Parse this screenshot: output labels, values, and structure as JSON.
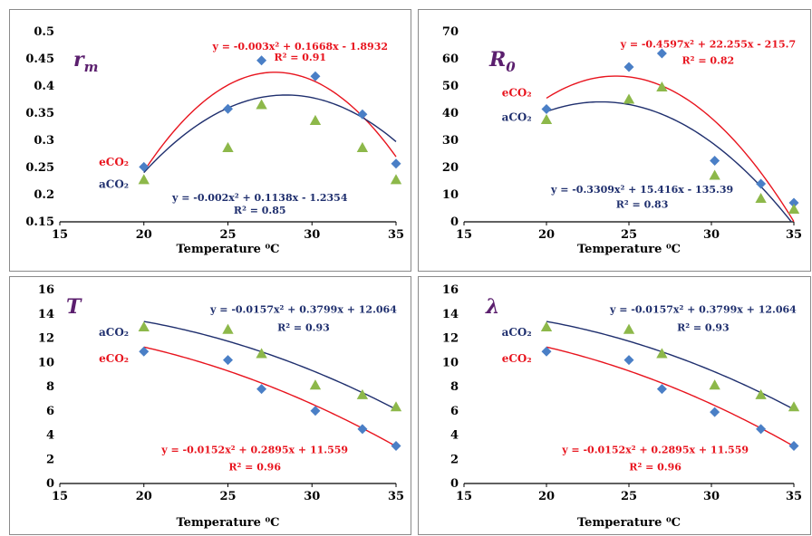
{
  "colors": {
    "eCO2": "#e8141e",
    "aCO2": "#1f2f6e",
    "diamond": "#4a7fc6",
    "triangle": "#8db84a",
    "panel_label": "#5b1f6e"
  },
  "chart_data": [
    {
      "type": "scatter",
      "panel_label": "r",
      "panel_label_sub": "m",
      "xlabel": "Temperature ⁰C",
      "xlim": [
        15,
        35
      ],
      "xticks": [
        "15",
        "20",
        "25",
        "30",
        "35"
      ],
      "ylim": [
        0.15,
        0.5
      ],
      "yticks": [
        "0.15",
        "0.2",
        "0.25",
        "0.3",
        "0.35",
        "0.4",
        "0.45",
        "0.5"
      ],
      "series": [
        {
          "name": "eCO2",
          "marker": "diamond",
          "x": [
            20,
            25,
            27,
            30.2,
            33,
            35
          ],
          "y": [
            0.251,
            0.358,
            0.447,
            0.418,
            0.348,
            0.257
          ],
          "fit": [
            -0.003,
            0.1668,
            -1.8932
          ],
          "fit_range": [
            20,
            35
          ]
        },
        {
          "name": "aCO2",
          "marker": "triangle",
          "x": [
            20,
            25,
            27,
            30.2,
            33,
            35
          ],
          "y": [
            0.227,
            0.286,
            0.365,
            0.336,
            0.286,
            0.227
          ],
          "fit": [
            -0.002,
            0.1138,
            -1.2354
          ],
          "fit_range": [
            20,
            35
          ]
        }
      ],
      "labels": [
        {
          "series": "eCO2",
          "text": "eCO₂",
          "x": 19.1,
          "y": 0.26,
          "anchor": "end"
        },
        {
          "series": "aCO2",
          "text": "aCO₂",
          "x": 19.1,
          "y": 0.219,
          "anchor": "end"
        }
      ],
      "equations": [
        {
          "series": "eCO2",
          "line1": "y = -0.003x² + 0.1668x - 1.8932",
          "line2": "R² = 0.91",
          "x1": 29.3,
          "y1": 0.473,
          "x2": 29.3,
          "y2": 0.453
        },
        {
          "series": "aCO2",
          "line1": "y = -0.002x² + 0.1138x - 1.2354",
          "line2": "R² = 0.85",
          "x1": 26.9,
          "y1": 0.195,
          "x2": 26.9,
          "y2": 0.172
        }
      ]
    },
    {
      "type": "scatter",
      "panel_label": "R",
      "panel_label_sub": "0",
      "xlabel": "Temperature ⁰C",
      "xlim": [
        15,
        35
      ],
      "xticks": [
        "15",
        "20",
        "25",
        "30",
        "35"
      ],
      "ylim": [
        0,
        70
      ],
      "yticks": [
        "0",
        "10",
        "20",
        "30",
        "40",
        "50",
        "60",
        "70"
      ],
      "series": [
        {
          "name": "eCO2",
          "marker": "diamond",
          "x": [
            20,
            25,
            27,
            30.2,
            33,
            35
          ],
          "y": [
            41.5,
            57,
            62,
            22.5,
            14,
            7
          ],
          "fit": [
            -0.4597,
            22.255,
            -215.7
          ],
          "fit_range": [
            20,
            35
          ]
        },
        {
          "name": "aCO2",
          "marker": "triangle",
          "x": [
            20,
            25,
            27,
            30.2,
            33,
            35
          ],
          "y": [
            37.5,
            45,
            49.5,
            17,
            8.5,
            4.5
          ],
          "fit": [
            -0.3309,
            15.416,
            -135.39
          ],
          "fit_range": [
            20,
            35
          ]
        }
      ],
      "labels": [
        {
          "series": "eCO2",
          "text": "eCO₂",
          "x": 19.1,
          "y": 47.5,
          "anchor": "end"
        },
        {
          "series": "aCO2",
          "text": "aCO₂",
          "x": 19.1,
          "y": 38.5,
          "anchor": "end"
        }
      ],
      "equations": [
        {
          "series": "eCO2",
          "line1": "y = -0.4597x² + 22.255x - 215.7",
          "line2": "R² = 0.82",
          "x1": 29.8,
          "y1": 65.5,
          "x2": 29.8,
          "y2": 59.5
        },
        {
          "series": "aCO2",
          "line1": "y = -0.3309x² + 15.416x - 135.39",
          "line2": "R² = 0.83",
          "x1": 25.8,
          "y1": 12,
          "x2": 25.8,
          "y2": 6.5
        }
      ]
    },
    {
      "type": "scatter",
      "panel_label": "T",
      "panel_label_sub": "",
      "xlabel": "Temperature ⁰C",
      "xlim": [
        15,
        35
      ],
      "xticks": [
        "15",
        "20",
        "25",
        "30",
        "35"
      ],
      "ylim": [
        0,
        16
      ],
      "yticks": [
        "0",
        "2",
        "4",
        "6",
        "8",
        "10",
        "12",
        "14",
        "16"
      ],
      "series": [
        {
          "name": "eCO2",
          "marker": "diamond",
          "x": [
            20,
            25,
            27,
            30.2,
            33,
            35
          ],
          "y": [
            10.9,
            10.2,
            7.8,
            6,
            4.5,
            3.1
          ],
          "fit": [
            -0.0152,
            0.2895,
            11.559
          ],
          "fit_range": [
            20,
            35
          ]
        },
        {
          "name": "aCO2",
          "marker": "triangle",
          "x": [
            20,
            25,
            27,
            30.2,
            33,
            35
          ],
          "y": [
            12.9,
            12.7,
            10.7,
            8.1,
            7.3,
            6.3
          ],
          "fit": [
            -0.0157,
            0.3799,
            12.064
          ],
          "fit_range": [
            20,
            35
          ]
        }
      ],
      "labels": [
        {
          "series": "aCO2",
          "text": "aCO₂",
          "x": 19.1,
          "y": 12.5,
          "anchor": "end"
        },
        {
          "series": "eCO2",
          "text": "eCO₂",
          "x": 19.1,
          "y": 10.3,
          "anchor": "end"
        }
      ],
      "equations": [
        {
          "series": "aCO2",
          "line1": "y = -0.0157x² + 0.3799x + 12.064",
          "line2": "R² = 0.93",
          "x1": 29.5,
          "y1": 14.4,
          "x2": 29.5,
          "y2": 12.9
        },
        {
          "series": "eCO2",
          "line1": "y = -0.0152x² + 0.2895x + 11.559",
          "line2": "R² = 0.96",
          "x1": 26.6,
          "y1": 2.8,
          "x2": 26.6,
          "y2": 1.4
        }
      ]
    },
    {
      "type": "scatter",
      "panel_label": "λ",
      "panel_label_sub": "",
      "xlabel": "Temperature ⁰C",
      "xlim": [
        15,
        35
      ],
      "xticks": [
        "15",
        "20",
        "25",
        "30",
        "35"
      ],
      "ylim": [
        0,
        16
      ],
      "yticks": [
        "0",
        "2",
        "4",
        "6",
        "8",
        "10",
        "12",
        "14",
        "16"
      ],
      "series": [
        {
          "name": "eCO2",
          "marker": "diamond",
          "x": [
            20,
            25,
            27,
            30.2,
            33,
            35
          ],
          "y": [
            10.9,
            10.2,
            7.8,
            5.9,
            4.5,
            3.1
          ],
          "fit": [
            -0.0152,
            0.2895,
            11.559
          ],
          "fit_range": [
            20,
            35
          ]
        },
        {
          "name": "aCO2",
          "marker": "triangle",
          "x": [
            20,
            25,
            27,
            30.2,
            33,
            35
          ],
          "y": [
            12.9,
            12.7,
            10.7,
            8.1,
            7.3,
            6.3
          ],
          "fit": [
            -0.0157,
            0.3799,
            12.064
          ],
          "fit_range": [
            20,
            35
          ]
        }
      ],
      "labels": [
        {
          "series": "aCO2",
          "text": "aCO₂",
          "x": 19.1,
          "y": 12.5,
          "anchor": "end"
        },
        {
          "series": "eCO2",
          "text": "eCO₂",
          "x": 19.1,
          "y": 10.3,
          "anchor": "end"
        }
      ],
      "equations": [
        {
          "series": "aCO2",
          "line1": "y = -0.0157x² + 0.3799x + 12.064",
          "line2": "R² = 0.93",
          "x1": 29.5,
          "y1": 14.4,
          "x2": 29.5,
          "y2": 12.9
        },
        {
          "series": "eCO2",
          "line1": "y = -0.0152x² + 0.2895x + 11.559",
          "line2": "R² = 0.96",
          "x1": 26.6,
          "y1": 2.8,
          "x2": 26.6,
          "y2": 1.4
        }
      ]
    }
  ]
}
